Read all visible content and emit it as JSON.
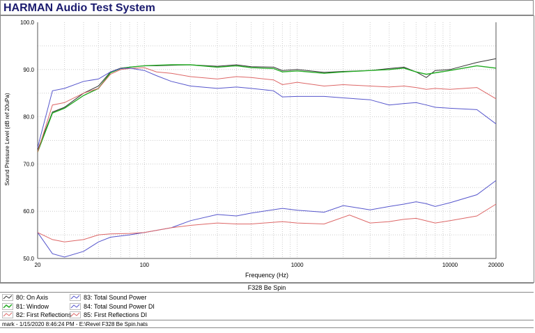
{
  "header": {
    "title": "HARMAN Audio Test System"
  },
  "subtitle": "F328 Be Spin",
  "footer": "mark - 1/15/2020 8:46:24 PM - E:\\Revel F328 Be Spin.hats",
  "chart_data": {
    "type": "line",
    "xlabel": "Frequency (Hz)",
    "ylabel": "Sound Pressure Level (dB ref 20uPa)",
    "xscale": "log",
    "xlim": [
      20,
      20000
    ],
    "ylim": [
      50,
      100
    ],
    "xticks": [
      "20",
      "100",
      "1000",
      "10000",
      "20000"
    ],
    "yticks": [
      "50.0",
      "60.0",
      "70.0",
      "80.0",
      "90.0",
      "100.0"
    ],
    "grid": true,
    "legend_position": "bottom",
    "series": [
      {
        "name": "80: On Axis",
        "color": "#333333",
        "x": [
          20,
          25,
          30,
          40,
          50,
          60,
          70,
          80,
          100,
          120,
          150,
          200,
          300,
          400,
          500,
          700,
          800,
          1000,
          1500,
          2000,
          3000,
          4000,
          5000,
          6000,
          7000,
          8000,
          10000,
          15000,
          20000
        ],
        "y": [
          73,
          81,
          82,
          85,
          86.5,
          89.5,
          90.3,
          90.5,
          90.8,
          90.8,
          90.9,
          91,
          90.7,
          91,
          90.6,
          90.5,
          89.8,
          90,
          89.4,
          89.6,
          89.8,
          90.2,
          90.5,
          89.5,
          88.3,
          89.8,
          90,
          91.5,
          92.3
        ]
      },
      {
        "name": "81: Window",
        "color": "#22aa22",
        "x": [
          20,
          25,
          30,
          40,
          50,
          60,
          70,
          80,
          100,
          120,
          150,
          200,
          300,
          400,
          500,
          700,
          800,
          1000,
          1500,
          2000,
          3000,
          4000,
          5000,
          6000,
          7000,
          8000,
          10000,
          15000,
          20000
        ],
        "y": [
          72.5,
          80.8,
          81.8,
          84.5,
          86,
          89.3,
          90.2,
          90.5,
          90.8,
          90.9,
          91,
          91,
          90.5,
          90.8,
          90.4,
          90.2,
          89.5,
          89.7,
          89.2,
          89.5,
          89.8,
          90,
          90.3,
          89.5,
          89,
          89.3,
          89.8,
          90.8,
          90.3
        ]
      },
      {
        "name": "82: First Reflections",
        "color": "#dd6666",
        "x": [
          20,
          25,
          30,
          40,
          50,
          60,
          70,
          80,
          100,
          120,
          150,
          200,
          300,
          400,
          500,
          700,
          800,
          1000,
          1500,
          2000,
          3000,
          4000,
          5000,
          6000,
          7000,
          8000,
          10000,
          15000,
          20000
        ],
        "y": [
          72.5,
          82.5,
          83,
          85,
          86,
          89,
          90,
          90.2,
          90.4,
          89.5,
          89.2,
          88.5,
          88,
          88.5,
          88.3,
          87.8,
          86.8,
          87.3,
          86.5,
          86.8,
          86.5,
          86.3,
          86.5,
          86.2,
          85.8,
          86,
          85.8,
          86.2,
          83.8
        ]
      },
      {
        "name": "83: Total Sound Power",
        "color": "#5555cc",
        "x": [
          20,
          25,
          30,
          40,
          50,
          60,
          70,
          80,
          100,
          120,
          150,
          200,
          300,
          400,
          500,
          700,
          800,
          1000,
          1500,
          2000,
          3000,
          4000,
          5000,
          6000,
          7000,
          8000,
          10000,
          15000,
          20000
        ],
        "y": [
          73.5,
          85.5,
          86,
          87.5,
          88,
          89.5,
          90.2,
          90.3,
          89.8,
          88.7,
          87.5,
          86.5,
          86,
          86.3,
          86,
          85.5,
          84.2,
          84.3,
          84.3,
          84,
          83.6,
          82.5,
          82.8,
          83,
          82.5,
          82,
          81.8,
          81.5,
          78.5
        ]
      },
      {
        "name": "84: Total Sound Power DI",
        "color": "#5555cc",
        "x": [
          20,
          25,
          30,
          40,
          50,
          60,
          80,
          100,
          150,
          200,
          300,
          400,
          500,
          800,
          1000,
          1500,
          2000,
          3000,
          4000,
          5000,
          6000,
          7000,
          8000,
          10000,
          15000,
          20000
        ],
        "y": [
          55.5,
          51,
          50.3,
          51.5,
          53.5,
          54.5,
          55,
          55.5,
          56.5,
          58,
          59.3,
          59,
          59.6,
          60.6,
          60.2,
          59.8,
          61.2,
          60.3,
          61,
          61.5,
          62,
          61.6,
          61,
          61.8,
          63.5,
          66.5
        ]
      },
      {
        "name": "85: First Reflections DI",
        "color": "#dd6666",
        "x": [
          20,
          25,
          30,
          40,
          50,
          60,
          80,
          100,
          150,
          200,
          300,
          400,
          500,
          800,
          1000,
          1500,
          2200,
          3000,
          4000,
          5000,
          6000,
          8000,
          10000,
          15000,
          20000
        ],
        "y": [
          55.5,
          54,
          53.5,
          54,
          55,
          55.2,
          55.3,
          55.5,
          56.5,
          57,
          57.5,
          57.3,
          57.3,
          57.8,
          57.5,
          57.3,
          59.2,
          57.5,
          57.8,
          58.3,
          58.5,
          57.5,
          58,
          59,
          61.5
        ]
      }
    ]
  }
}
